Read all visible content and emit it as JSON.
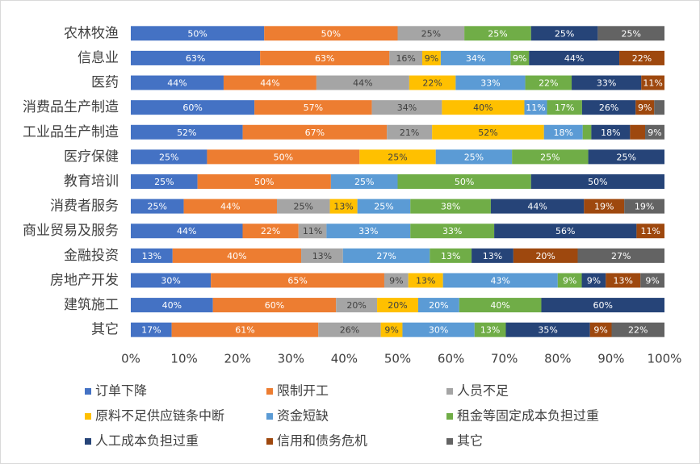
{
  "chart_data": {
    "type": "bar",
    "orientation": "horizontal",
    "stacking": "percent",
    "categories": [
      "农林牧渔",
      "信息业",
      "医药",
      "消费品生产制造",
      "工业品生产制造",
      "医疗保健",
      "教育培训",
      "消费者服务",
      "商业贸易及服务",
      "金融投资",
      "房地产开发",
      "建筑施工",
      "其它"
    ],
    "series": [
      {
        "name": "订单下降",
        "color": "#4472c4",
        "values": [
          50,
          63,
          44,
          60,
          52,
          25,
          25,
          25,
          44,
          13,
          30,
          40,
          17
        ],
        "value_labels": [
          "50%",
          "63%",
          "44%",
          "60%",
          "52%",
          "25%",
          "25%",
          "25%",
          "44%",
          "13%",
          "30%",
          "40%",
          "17%"
        ]
      },
      {
        "name": "限制开工",
        "color": "#ed7d31",
        "values": [
          50,
          63,
          44,
          57,
          67,
          50,
          50,
          44,
          22,
          40,
          65,
          60,
          61
        ],
        "value_labels": [
          "50%",
          "63%",
          "44%",
          "57%",
          "67%",
          "50%",
          "50%",
          "44%",
          "22%",
          "40%",
          "65%",
          "60%",
          "61%"
        ]
      },
      {
        "name": "人员不足",
        "color": "#a5a5a5",
        "values": [
          25,
          16,
          44,
          34,
          21,
          null,
          null,
          25,
          11,
          13,
          9,
          20,
          26
        ],
        "value_labels": [
          "25%",
          "16%",
          "44%",
          "34%",
          "21%",
          null,
          null,
          "25%",
          "11%",
          "13%",
          "9%",
          "20%",
          "26%"
        ]
      },
      {
        "name": "原料不足供应链条中断",
        "color": "#ffc000",
        "values": [
          null,
          9,
          22,
          40,
          52,
          25,
          null,
          13,
          null,
          null,
          13,
          20,
          9
        ],
        "value_labels": [
          null,
          "9%",
          "22%",
          "40%",
          "52%",
          "25%",
          null,
          "13%",
          null,
          null,
          "13%",
          "20%",
          "9%"
        ]
      },
      {
        "name": "资金短缺",
        "color": "#5b9bd5",
        "values": [
          null,
          34,
          33,
          11,
          18,
          25,
          25,
          25,
          33,
          27,
          43,
          20,
          30
        ],
        "value_labels": [
          null,
          "34%",
          "33%",
          "11%",
          "18%",
          "25%",
          "25%",
          "25%",
          "33%",
          "27%",
          "43%",
          "20%",
          "30%"
        ]
      },
      {
        "name": "租金等固定成本负担过重",
        "color": "#70ad47",
        "values": [
          25,
          9,
          22,
          17,
          4,
          25,
          50,
          38,
          33,
          13,
          9,
          40,
          13
        ],
        "value_labels": [
          "25%",
          "9%",
          "22%",
          "17%",
          null,
          "25%",
          "50%",
          "38%",
          "33%",
          "13%",
          "9%",
          "40%",
          "13%"
        ]
      },
      {
        "name": "人工成本负担过重",
        "color": "#264478",
        "values": [
          25,
          44,
          33,
          26,
          18,
          25,
          50,
          44,
          56,
          13,
          9,
          60,
          35
        ],
        "value_labels": [
          "25%",
          "44%",
          "33%",
          "26%",
          "18%",
          "25%",
          "50%",
          "44%",
          "56%",
          "13%",
          "9%",
          "60%",
          "35%"
        ]
      },
      {
        "name": "信用和债务危机",
        "color": "#9e480e",
        "values": [
          null,
          22,
          11,
          9,
          7,
          null,
          null,
          19,
          11,
          20,
          13,
          null,
          9
        ],
        "value_labels": [
          null,
          "22%",
          "11%",
          "9%",
          null,
          null,
          null,
          "19%",
          "11%",
          "20%",
          "13%",
          null,
          "9%"
        ]
      },
      {
        "name": "其它",
        "color": "#636363",
        "values": [
          25,
          null,
          null,
          5,
          9,
          null,
          null,
          19,
          null,
          27,
          9,
          null,
          22
        ],
        "value_labels": [
          "25%",
          null,
          null,
          null,
          "9%",
          null,
          null,
          "19%",
          null,
          "27%",
          "9%",
          null,
          "22%"
        ]
      }
    ],
    "xlim": [
      0,
      100
    ],
    "xticks": [
      {
        "value": 0,
        "label": "0%"
      },
      {
        "value": 10,
        "label": "10%"
      },
      {
        "value": 20,
        "label": "20%"
      },
      {
        "value": 30,
        "label": "30%"
      },
      {
        "value": 40,
        "label": "40%"
      },
      {
        "value": 50,
        "label": "50%"
      },
      {
        "value": 60,
        "label": "60%"
      },
      {
        "value": 70,
        "label": "70%"
      },
      {
        "value": 80,
        "label": "80%"
      },
      {
        "value": 90,
        "label": "90%"
      },
      {
        "value": 100,
        "label": "100%"
      }
    ],
    "legend": "bottom"
  }
}
